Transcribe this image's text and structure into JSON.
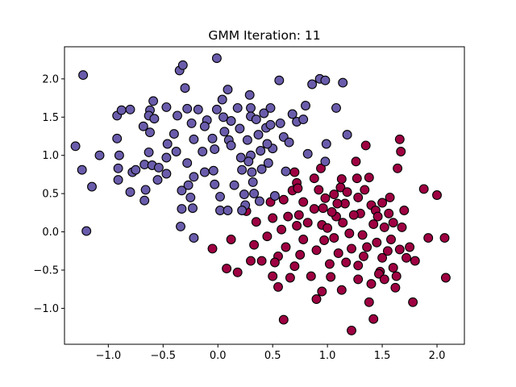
{
  "chart_data": {
    "type": "scatter",
    "title": "GMM Iteration: 11",
    "xlabel": "",
    "ylabel": "",
    "xlim": [
      -1.4,
      2.25
    ],
    "ylim": [
      -1.47,
      2.42
    ],
    "xticks": [
      -1.0,
      -0.5,
      0.0,
      0.5,
      1.0,
      1.5,
      2.0
    ],
    "xtick_labels": [
      "−1.0",
      "−0.5",
      "0.0",
      "0.5",
      "1.0",
      "1.5",
      "2.0"
    ],
    "yticks": [
      -1.0,
      -0.5,
      0.0,
      0.5,
      1.0,
      1.5,
      2.0
    ],
    "ytick_labels": [
      "−1.0",
      "−0.5",
      "0.0",
      "0.5",
      "1.0",
      "1.5",
      "2.0"
    ],
    "grid": false,
    "legend": "none",
    "marker_edge_color": "#000000",
    "series": [
      {
        "color": "#6a5cab",
        "points": [
          [
            -1.3,
            1.12
          ],
          [
            -1.23,
            2.05
          ],
          [
            -1.24,
            0.81
          ],
          [
            -1.2,
            0.01
          ],
          [
            -1.15,
            0.59
          ],
          [
            -1.08,
            1.0
          ],
          [
            -0.92,
            1.52
          ],
          [
            -0.88,
            1.59
          ],
          [
            -0.92,
            1.22
          ],
          [
            -0.9,
            1.0
          ],
          [
            -0.91,
            0.83
          ],
          [
            -0.91,
            0.68
          ],
          [
            -0.8,
            1.6
          ],
          [
            -0.78,
            0.78
          ],
          [
            -0.75,
            0.81
          ],
          [
            -0.8,
            0.52
          ],
          [
            -0.68,
            1.38
          ],
          [
            -0.67,
            0.88
          ],
          [
            -0.62,
            1.59
          ],
          [
            -0.63,
            1.52
          ],
          [
            -0.59,
            1.71
          ],
          [
            -0.58,
            1.48
          ],
          [
            -0.66,
            0.55
          ],
          [
            -0.67,
            0.41
          ],
          [
            -0.62,
            1.3
          ],
          [
            -0.63,
            1.04
          ],
          [
            -0.6,
            0.87
          ],
          [
            -0.54,
            0.84
          ],
          [
            -0.55,
            0.68
          ],
          [
            -0.47,
            1.63
          ],
          [
            -0.46,
            1.15
          ],
          [
            -0.47,
            0.97
          ],
          [
            -0.47,
            0.76
          ],
          [
            -0.4,
            1.28
          ],
          [
            -0.38,
            1.05
          ],
          [
            -0.35,
            2.11
          ],
          [
            -0.32,
            2.18
          ],
          [
            -0.37,
            1.52
          ],
          [
            -0.33,
            0.54
          ],
          [
            -0.33,
            0.3
          ],
          [
            -0.34,
            0.07
          ],
          [
            -0.3,
            1.88
          ],
          [
            -0.28,
            1.61
          ],
          [
            -0.28,
            0.9
          ],
          [
            -0.27,
            0.61
          ],
          [
            -0.25,
            0.45
          ],
          [
            -0.24,
            1.42
          ],
          [
            -0.22,
            1.21
          ],
          [
            -0.22,
            0.72
          ],
          [
            -0.23,
            0.31
          ],
          [
            -0.22,
            -0.08
          ],
          [
            -0.18,
            1.6
          ],
          [
            -0.14,
            1.05
          ],
          [
            -0.12,
            0.78
          ],
          [
            -0.1,
            1.46
          ],
          [
            -0.05,
            1.22
          ],
          [
            -0.03,
            1.08
          ],
          [
            -0.01,
            1.6
          ],
          [
            -0.01,
            2.27
          ],
          [
            -0.04,
            0.8
          ],
          [
            -0.03,
            0.62
          ],
          [
            0.02,
            0.46
          ],
          [
            0.02,
            0.28
          ],
          [
            0.04,
            1.73
          ],
          [
            0.05,
            1.5
          ],
          [
            0.06,
            1.31
          ],
          [
            0.09,
            1.86
          ],
          [
            0.1,
            1.2
          ],
          [
            0.09,
            0.28
          ],
          [
            0.12,
            1.13
          ],
          [
            0.15,
            0.61
          ],
          [
            0.18,
            1.62
          ],
          [
            0.2,
            1.35
          ],
          [
            0.21,
            0.97
          ],
          [
            0.22,
            0.81
          ],
          [
            0.24,
            0.49
          ],
          [
            0.25,
            0.35
          ],
          [
            0.27,
            1.2
          ],
          [
            0.29,
            1.79
          ],
          [
            0.3,
            1.62
          ],
          [
            0.3,
            1.51
          ],
          [
            0.3,
            1.0
          ],
          [
            0.31,
            0.78
          ],
          [
            0.32,
            0.65
          ],
          [
            0.33,
            0.5
          ],
          [
            0.37,
            1.27
          ],
          [
            0.39,
            1.06
          ],
          [
            0.4,
            0.82
          ],
          [
            0.38,
            0.4
          ],
          [
            0.42,
            1.55
          ],
          [
            0.44,
            1.36
          ],
          [
            0.46,
            0.9
          ],
          [
            0.48,
            1.62
          ],
          [
            0.5,
            1.09
          ],
          [
            0.52,
            0.47
          ],
          [
            0.56,
            1.98
          ],
          [
            0.57,
            1.42
          ],
          [
            0.6,
            1.24
          ],
          [
            0.62,
            0.79
          ],
          [
            0.65,
            1.17
          ],
          [
            0.68,
            1.54
          ],
          [
            0.72,
            1.44
          ],
          [
            0.78,
            1.47
          ],
          [
            0.8,
            1.65
          ],
          [
            0.82,
            1.02
          ],
          [
            0.86,
            1.93
          ],
          [
            0.93,
            2.0
          ],
          [
            0.98,
            1.98
          ],
          [
            0.99,
            1.15
          ],
          [
            0.98,
            0.92
          ],
          [
            1.08,
            1.62
          ],
          [
            1.14,
            1.95
          ],
          [
            1.18,
            1.27
          ],
          [
            0.22,
            0.28
          ],
          [
            0.45,
            1.15
          ],
          [
            0.48,
            1.4
          ],
          [
            0.28,
            0.92
          ],
          [
            -0.12,
            1.38
          ],
          [
            0.12,
            1.45
          ],
          [
            0.35,
            1.47
          ]
        ]
      },
      {
        "color": "#9e0142",
        "points": [
          [
            0.68,
            0.54
          ],
          [
            0.7,
            0.78
          ],
          [
            0.72,
            0.64
          ],
          [
            0.73,
            0.57
          ],
          [
            0.72,
            0.08
          ],
          [
            0.78,
            0.39
          ],
          [
            0.88,
            0.7
          ],
          [
            0.94,
            0.83
          ],
          [
            0.98,
            0.44
          ],
          [
            0.95,
            0.09
          ],
          [
            0.97,
            -0.11
          ],
          [
            1.02,
            -0.42
          ],
          [
            1.06,
            0.49
          ],
          [
            1.08,
            0.2
          ],
          [
            1.1,
            -0.28
          ],
          [
            1.12,
            0.58
          ],
          [
            1.13,
            0.69
          ],
          [
            1.16,
            0.37
          ],
          [
            1.2,
            -0.02
          ],
          [
            1.22,
            -0.22
          ],
          [
            1.26,
            0.92
          ],
          [
            1.27,
            0.7
          ],
          [
            1.28,
            0.45
          ],
          [
            1.3,
            0.24
          ],
          [
            1.32,
            -0.04
          ],
          [
            1.33,
            -0.32
          ],
          [
            1.35,
            1.13
          ],
          [
            1.38,
            0.71
          ],
          [
            1.4,
            0.35
          ],
          [
            1.42,
            0.1
          ],
          [
            1.45,
            -0.14
          ],
          [
            1.48,
            -0.52
          ],
          [
            1.5,
            0.38
          ],
          [
            1.52,
            0.06
          ],
          [
            1.55,
            -0.25
          ],
          [
            1.57,
            0.45
          ],
          [
            1.6,
            -0.47
          ],
          [
            1.62,
            -0.73
          ],
          [
            1.64,
            0.83
          ],
          [
            1.66,
            1.21
          ],
          [
            1.67,
            1.05
          ],
          [
            1.68,
            0.06
          ],
          [
            1.72,
            -0.34
          ],
          [
            1.75,
            -0.2
          ],
          [
            1.78,
            -0.92
          ],
          [
            1.8,
            -0.38
          ],
          [
            1.88,
            0.56
          ],
          [
            1.92,
            -0.08
          ],
          [
            2.0,
            0.48
          ],
          [
            2.07,
            -0.08
          ],
          [
            2.08,
            -0.6
          ],
          [
            0.9,
            -0.88
          ],
          [
            0.95,
            -0.78
          ],
          [
            1.03,
            -0.59
          ],
          [
            1.13,
            -0.76
          ],
          [
            1.22,
            -1.29
          ],
          [
            1.28,
            -0.62
          ],
          [
            1.38,
            -0.92
          ],
          [
            1.42,
            -1.14
          ],
          [
            1.47,
            -0.55
          ],
          [
            0.6,
            -1.15
          ],
          [
            0.5,
            -0.58
          ],
          [
            0.55,
            -0.32
          ],
          [
            0.58,
            0.03
          ],
          [
            0.62,
            -0.2
          ],
          [
            0.64,
            0.2
          ],
          [
            0.45,
            -0.06
          ],
          [
            0.4,
            -0.38
          ],
          [
            0.35,
            0.13
          ],
          [
            0.33,
            -0.17
          ],
          [
            0.3,
            -0.38
          ],
          [
            0.26,
            0.27
          ],
          [
            0.12,
            -0.1
          ],
          [
            0.18,
            -0.53
          ],
          [
            0.08,
            -0.48
          ],
          [
            -0.05,
            -0.22
          ],
          [
            0.48,
            0.39
          ],
          [
            0.5,
            0.18
          ],
          [
            0.52,
            -0.4
          ],
          [
            0.55,
            -0.72
          ],
          [
            0.7,
            -0.45
          ],
          [
            0.75,
            -0.3
          ],
          [
            0.78,
            -0.1
          ],
          [
            0.82,
            0.12
          ],
          [
            0.85,
            -0.58
          ],
          [
            0.88,
            0.3
          ],
          [
            0.9,
            -0.24
          ],
          [
            0.92,
            0.55
          ],
          [
            1.0,
            0.05
          ],
          [
            1.04,
            0.26
          ],
          [
            1.06,
            -0.08
          ],
          [
            1.09,
            0.37
          ],
          [
            1.14,
            0.12
          ],
          [
            1.17,
            -0.4
          ],
          [
            1.24,
            0.22
          ],
          [
            1.28,
            -0.44
          ],
          [
            1.34,
            0.55
          ],
          [
            1.36,
            -0.2
          ],
          [
            1.4,
            -0.68
          ],
          [
            1.44,
            0.28
          ],
          [
            1.46,
            0.2
          ],
          [
            1.5,
            -0.34
          ],
          [
            1.52,
            -0.62
          ],
          [
            1.56,
            0.24
          ],
          [
            1.58,
            -0.1
          ],
          [
            1.6,
            0.12
          ],
          [
            1.63,
            -0.58
          ],
          [
            1.66,
            -0.23
          ],
          [
            1.7,
            0.28
          ],
          [
            0.66,
            -0.6
          ],
          [
            0.74,
            0.22
          ],
          [
            0.6,
            0.42
          ],
          [
            0.96,
            0.31
          ],
          [
            1.18,
            0.52
          ]
        ]
      }
    ]
  }
}
